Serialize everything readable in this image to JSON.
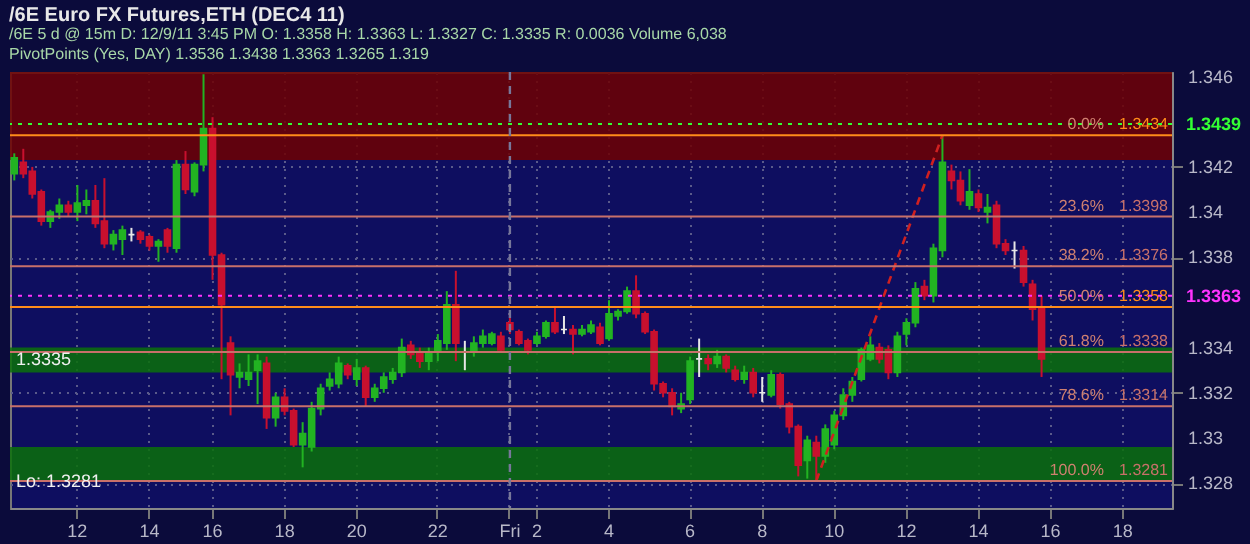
{
  "chart_data": {
    "type": "candlestick",
    "title": "/6E  Euro FX Futures,ETH (DEC4 11)",
    "subtitle": "/6E 5 d @ 15m   D: 12/9/11 3:45 PM   O: 1.3358   H: 1.3363   L: 1.3327   C: 1.3335   R: 0.0036   Volume 6,038",
    "categories": [
      null,
      null,
      null,
      null,
      null,
      null,
      null,
      "12",
      null,
      null,
      null,
      null,
      null,
      null,
      null,
      "14",
      null,
      null,
      null,
      null,
      null,
      null,
      "16",
      null,
      null,
      null,
      null,
      null,
      null,
      null,
      "18",
      null,
      null,
      null,
      null,
      null,
      null,
      null,
      "20",
      null,
      null,
      null,
      null,
      null,
      null,
      null,
      null,
      "22",
      null,
      null,
      null,
      null,
      null,
      null,
      null,
      "Fri",
      null,
      null,
      "2",
      null,
      null,
      null,
      null,
      null,
      null,
      null,
      "4",
      null,
      null,
      null,
      null,
      null,
      null,
      null,
      null,
      "6",
      null,
      null,
      null,
      null,
      null,
      null,
      null,
      "8",
      null,
      null,
      null,
      null,
      null,
      null,
      null,
      "10",
      null,
      null,
      null,
      null,
      null,
      null,
      null,
      "12",
      null,
      null,
      null,
      null,
      null,
      null,
      null,
      "14",
      null,
      null,
      null,
      null,
      null,
      null,
      null,
      "16",
      null,
      null,
      null,
      null,
      null,
      null,
      null,
      "18",
      null,
      null,
      null,
      null,
      null
    ],
    "ohlc": [
      [
        1.3417,
        1.3426,
        1.3414,
        1.3424
      ],
      [
        1.3422,
        1.3428,
        1.3415,
        1.3417
      ],
      [
        1.3418,
        1.342,
        1.3406,
        1.3408
      ],
      [
        1.3409,
        1.341,
        1.3394,
        1.3396
      ],
      [
        1.3396,
        1.3401,
        1.3393,
        1.34
      ],
      [
        1.34,
        1.3406,
        1.3397,
        1.3403
      ],
      [
        1.3403,
        1.3405,
        1.3398,
        1.34
      ],
      [
        1.34,
        1.3412,
        1.3396,
        1.3404
      ],
      [
        1.3403,
        1.341,
        1.3399,
        1.3405
      ],
      [
        1.3405,
        1.3412,
        1.3393,
        1.3395
      ],
      [
        1.3396,
        1.3415,
        1.3384,
        1.3386
      ],
      [
        1.3386,
        1.3392,
        1.3383,
        1.339
      ],
      [
        1.3388,
        1.3394,
        1.3381,
        1.3392
      ],
      [
        1.339,
        1.3393,
        1.3387,
        1.339
      ],
      [
        1.3391,
        1.3392,
        1.3386,
        1.3388
      ],
      [
        1.3389,
        1.339,
        1.3383,
        1.3385
      ],
      [
        1.3385,
        1.3388,
        1.3378,
        1.3387
      ],
      [
        1.3392,
        1.3393,
        1.3382,
        1.3385
      ],
      [
        1.3384,
        1.3423,
        1.3382,
        1.3421
      ],
      [
        1.3421,
        1.3427,
        1.3408,
        1.341
      ],
      [
        1.3409,
        1.3422,
        1.3407,
        1.3421
      ],
      [
        1.3421,
        1.3461,
        1.3418,
        1.3437
      ],
      [
        1.3437,
        1.3442,
        1.337,
        1.3381
      ],
      [
        1.3381,
        1.3382,
        1.3326,
        1.3359
      ],
      [
        1.3342,
        1.3345,
        1.331,
        1.3328
      ],
      [
        1.3327,
        1.3333,
        1.3322,
        1.3329
      ],
      [
        1.3326,
        1.3337,
        1.3323,
        1.3329
      ],
      [
        1.333,
        1.3337,
        1.3315,
        1.3334
      ],
      [
        1.3333,
        1.3336,
        1.3304,
        1.3309
      ],
      [
        1.3309,
        1.332,
        1.3305,
        1.3318
      ],
      [
        1.3318,
        1.3322,
        1.331,
        1.3312
      ],
      [
        1.3312,
        1.3313,
        1.3296,
        1.3297
      ],
      [
        1.3297,
        1.3307,
        1.3287,
        1.3302
      ],
      [
        1.3296,
        1.3316,
        1.3294,
        1.3313
      ],
      [
        1.3313,
        1.3324,
        1.331,
        1.3322
      ],
      [
        1.3323,
        1.3329,
        1.3321,
        1.3326
      ],
      [
        1.3324,
        1.3336,
        1.3322,
        1.3333
      ],
      [
        1.3332,
        1.3333,
        1.3326,
        1.3328
      ],
      [
        1.3326,
        1.3335,
        1.3323,
        1.3331
      ],
      [
        1.3331,
        1.3332,
        1.3314,
        1.3318
      ],
      [
        1.3318,
        1.3324,
        1.3316,
        1.3322
      ],
      [
        1.3322,
        1.3329,
        1.332,
        1.3327
      ],
      [
        1.3326,
        1.3331,
        1.3324,
        1.3329
      ],
      [
        1.3329,
        1.3344,
        1.3327,
        1.334
      ],
      [
        1.3341,
        1.3343,
        1.3335,
        1.3337
      ],
      [
        1.3338,
        1.334,
        1.3331,
        1.3334
      ],
      [
        1.3334,
        1.334,
        1.333,
        1.3338
      ],
      [
        1.3338,
        1.3346,
        1.3334,
        1.3343
      ],
      [
        1.3342,
        1.3365,
        1.3339,
        1.3359
      ],
      [
        1.3359,
        1.3374,
        1.3334,
        1.3342
      ],
      [
        1.3338,
        1.3343,
        1.333,
        1.3338
      ],
      [
        1.3338,
        1.3345,
        1.3336,
        1.3342
      ],
      [
        1.3342,
        1.3348,
        1.334,
        1.3345
      ],
      [
        1.3342,
        1.3347,
        1.3341,
        1.3346
      ],
      [
        1.3345,
        1.3347,
        1.3338,
        1.3339
      ],
      [
        1.3351,
        1.3355,
        1.3346,
        1.3348
      ],
      [
        1.3347,
        1.3348,
        1.3341,
        1.3342
      ],
      [
        1.3343,
        1.3344,
        1.3337,
        1.3339
      ],
      [
        1.3342,
        1.3347,
        1.3341,
        1.3345
      ],
      [
        1.3345,
        1.3352,
        1.3344,
        1.3351
      ],
      [
        1.3351,
        1.3358,
        1.3346,
        1.3347
      ],
      [
        1.3348,
        1.3354,
        1.3346,
        1.3348
      ],
      [
        1.3348,
        1.335,
        1.3337,
        1.3346
      ],
      [
        1.3346,
        1.335,
        1.3345,
        1.3348
      ],
      [
        1.3347,
        1.3352,
        1.3346,
        1.335
      ],
      [
        1.3349,
        1.3351,
        1.3341,
        1.3342
      ],
      [
        1.3344,
        1.3361,
        1.3343,
        1.3355
      ],
      [
        1.3354,
        1.3357,
        1.3352,
        1.3356
      ],
      [
        1.3356,
        1.3367,
        1.3355,
        1.3365
      ],
      [
        1.3365,
        1.3372,
        1.3353,
        1.3355
      ],
      [
        1.3355,
        1.3356,
        1.3346,
        1.3347
      ],
      [
        1.3347,
        1.3348,
        1.3321,
        1.3324
      ],
      [
        1.3324,
        1.3325,
        1.3318,
        1.332
      ],
      [
        1.332,
        1.3322,
        1.331,
        1.3314
      ],
      [
        1.3313,
        1.332,
        1.3311,
        1.3315
      ],
      [
        1.3317,
        1.3336,
        1.3315,
        1.3334
      ],
      [
        1.3335,
        1.3344,
        1.3327,
        1.3335
      ],
      [
        1.3335,
        1.3337,
        1.333,
        1.3333
      ],
      [
        1.3333,
        1.3339,
        1.3331,
        1.3336
      ],
      [
        1.3336,
        1.3337,
        1.3329,
        1.3331
      ],
      [
        1.333,
        1.3332,
        1.3325,
        1.3326
      ],
      [
        1.3326,
        1.3332,
        1.3324,
        1.3329
      ],
      [
        1.3329,
        1.3331,
        1.3318,
        1.332
      ],
      [
        1.332,
        1.3327,
        1.3316,
        1.332
      ],
      [
        1.3319,
        1.333,
        1.3318,
        1.3328
      ],
      [
        1.3328,
        1.3329,
        1.3313,
        1.3315
      ],
      [
        1.3315,
        1.3316,
        1.3302,
        1.3305
      ],
      [
        1.3305,
        1.3306,
        1.3283,
        1.3288
      ],
      [
        1.329,
        1.3301,
        1.3282,
        1.3299
      ],
      [
        1.3298,
        1.3301,
        1.3281,
        1.3292
      ],
      [
        1.3292,
        1.3306,
        1.3289,
        1.3304
      ],
      [
        1.3297,
        1.3312,
        1.3295,
        1.331
      ],
      [
        1.331,
        1.3322,
        1.3308,
        1.3319
      ],
      [
        1.3319,
        1.3327,
        1.3316,
        1.3325
      ],
      [
        1.3326,
        1.334,
        1.3325,
        1.3339
      ],
      [
        1.3335,
        1.3345,
        1.3334,
        1.3341
      ],
      [
        1.334,
        1.3342,
        1.3333,
        1.3335
      ],
      [
        1.3339,
        1.3341,
        1.3326,
        1.3329
      ],
      [
        1.3329,
        1.3347,
        1.3327,
        1.3345
      ],
      [
        1.3346,
        1.3353,
        1.3341,
        1.3351
      ],
      [
        1.3351,
        1.3369,
        1.3349,
        1.3366
      ],
      [
        1.3367,
        1.337,
        1.3361,
        1.3363
      ],
      [
        1.3363,
        1.3386,
        1.336,
        1.3384
      ],
      [
        1.3383,
        1.3434,
        1.338,
        1.3422
      ],
      [
        1.3418,
        1.3421,
        1.341,
        1.3414
      ],
      [
        1.3414,
        1.3418,
        1.3403,
        1.3405
      ],
      [
        1.3403,
        1.3419,
        1.3401,
        1.3409
      ],
      [
        1.3408,
        1.341,
        1.34,
        1.3402
      ],
      [
        1.34,
        1.3408,
        1.3395,
        1.3402
      ],
      [
        1.3403,
        1.3405,
        1.3384,
        1.3386
      ],
      [
        1.3386,
        1.3388,
        1.3381,
        1.3383
      ],
      [
        1.3383,
        1.3387,
        1.3375,
        1.3383
      ],
      [
        1.3383,
        1.3385,
        1.3367,
        1.3369
      ],
      [
        1.3368,
        1.337,
        1.3352,
        1.3357
      ],
      [
        1.3358,
        1.3363,
        1.3327,
        1.3335
      ],
      null,
      null,
      null,
      null,
      null,
      null,
      null,
      null,
      null,
      null,
      null,
      null,
      null,
      null
    ],
    "colors": [
      "#22b322",
      "#c8102e",
      "#c8102e",
      "#c8102e",
      "#22b322",
      "#22b322",
      "#c8102e",
      "#22b322",
      "#22b322",
      "#c8102e",
      "#c8102e",
      "#22b322",
      "#22b322",
      "#e6e6e6",
      "#c8102e",
      "#c8102e",
      "#22b322",
      "#c8102e",
      "#22b322",
      "#c8102e",
      "#22b322",
      "#22b322",
      "#c8102e",
      "#c8102e",
      "#c8102e",
      "#22b322",
      "#22b322",
      "#22b322",
      "#c8102e",
      "#22b322",
      "#c8102e",
      "#c8102e",
      "#22b322",
      "#22b322",
      "#22b322",
      "#22b322",
      "#22b322",
      "#c8102e",
      "#22b322",
      "#c8102e",
      "#22b322",
      "#22b322",
      "#22b322",
      "#22b322",
      "#c8102e",
      "#c8102e",
      "#22b322",
      "#22b322",
      "#22b322",
      "#c8102e",
      "#e6e6e6",
      "#22b322",
      "#22b322",
      "#22b322",
      "#c8102e",
      "#c8102e",
      "#c8102e",
      "#c8102e",
      "#22b322",
      "#22b322",
      "#c8102e",
      "#e6e6e6",
      "#c8102e",
      "#22b322",
      "#22b322",
      "#c8102e",
      "#22b322",
      "#22b322",
      "#22b322",
      "#c8102e",
      "#c8102e",
      "#c8102e",
      "#c8102e",
      "#c8102e",
      "#22b322",
      "#22b322",
      "#e6e6e6",
      "#c8102e",
      "#22b322",
      "#c8102e",
      "#c8102e",
      "#22b322",
      "#c8102e",
      "#e6e6e6",
      "#22b322",
      "#c8102e",
      "#c8102e",
      "#c8102e",
      "#22b322",
      "#c8102e",
      "#22b322",
      "#22b322",
      "#22b322",
      "#22b322",
      "#22b322",
      "#22b322",
      "#c8102e",
      "#c8102e",
      "#22b322",
      "#22b322",
      "#22b322",
      "#c8102e",
      "#22b322",
      "#22b322",
      "#c8102e",
      "#c8102e",
      "#22b322",
      "#c8102e",
      "#22b322",
      "#c8102e",
      "#c8102e",
      "#e6e6e6",
      "#c8102e",
      "#c8102e",
      "#c8102e",
      null,
      null,
      null,
      null,
      null,
      null,
      null,
      null,
      null,
      null,
      null,
      null,
      null,
      null
    ],
    "series": [
      {
        "type": "line",
        "color": "#d02020",
        "line_style": "dashed",
        "values": [
          null,
          null,
          null,
          null,
          null,
          null,
          null,
          null,
          null,
          null,
          null,
          null,
          null,
          null,
          null,
          null,
          null,
          null,
          null,
          null,
          null,
          null,
          null,
          null,
          null,
          null,
          null,
          null,
          null,
          null,
          null,
          null,
          null,
          null,
          null,
          null,
          null,
          null,
          null,
          null,
          null,
          null,
          null,
          null,
          null,
          null,
          null,
          null,
          null,
          null,
          null,
          null,
          null,
          null,
          null,
          null,
          null,
          null,
          null,
          null,
          null,
          null,
          null,
          null,
          null,
          null,
          null,
          null,
          null,
          null,
          null,
          null,
          null,
          null,
          null,
          null,
          null,
          null,
          null,
          null,
          null,
          null,
          null,
          null,
          null,
          null,
          null,
          null,
          null,
          1.3281,
          null,
          null,
          null,
          null,
          null,
          null,
          null,
          null,
          null,
          null,
          null,
          null,
          null,
          1.3434,
          null,
          null,
          null,
          null,
          null,
          null,
          null,
          null,
          null,
          null,
          null,
          null,
          null,
          null,
          null,
          null,
          null,
          null,
          null,
          null,
          null,
          null,
          null,
          null,
          null
        ]
      }
    ],
    "ylim": [
      1.3269,
      1.3462
    ],
    "yticks": [
      1.328,
      1.33,
      1.332,
      1.334,
      1.338,
      1.34,
      1.342,
      1.346
    ],
    "grid": true,
    "ref_lines": [
      {
        "axis": "y",
        "value": 1.3434,
        "label": "1.3434",
        "color": "#ff8c1a"
      },
      {
        "axis": "y",
        "value": 1.3398,
        "label": "1.3398",
        "color": "#c8706a"
      },
      {
        "axis": "y",
        "value": 1.3376,
        "label": "1.3376",
        "color": "#c8706a"
      },
      {
        "axis": "y",
        "value": 1.3358,
        "label": "1.3358",
        "color": "#ff8c1a"
      },
      {
        "axis": "y",
        "value": 1.3338,
        "label": "1.3338",
        "color": "#c8706a"
      },
      {
        "axis": "y",
        "value": 1.3314,
        "label": "1.3314",
        "color": "#c8706a"
      },
      {
        "axis": "y",
        "value": 1.3281,
        "label": "1.3281",
        "color": "#c8706a"
      },
      {
        "axis": "y",
        "value": 1.3439,
        "label": "1.3439",
        "color": "#33ff33",
        "line_style": "dotted"
      },
      {
        "axis": "y",
        "value": 1.3363,
        "label": "1.3363",
        "color": "#ff33ff",
        "line_style": "dotted"
      },
      {
        "axis": "x",
        "value": "Fri",
        "label": null,
        "color": "#77779a",
        "line_style": "dashed"
      }
    ],
    "bands": [
      {
        "axis": "y",
        "from": 1.3423,
        "to": 1.3462,
        "color": "#6e0000"
      },
      {
        "axis": "y",
        "from": 1.3329,
        "to": 1.334,
        "color": "#0a700a"
      },
      {
        "axis": "y",
        "from": 1.3281,
        "to": 1.3296,
        "color": "#0a700a"
      }
    ],
    "annotations": [
      "PivotPoints (Yes, DAY)   1.3536   1.3438   1.3363   1.3265   1.319",
      {
        "text": "0.0%",
        "y": 1.3434
      },
      {
        "text": "23.6%",
        "y": 1.3398
      },
      {
        "text": "38.2%",
        "y": 1.3376
      },
      {
        "text": "50.0%",
        "y": 1.3358
      },
      {
        "text": "61.8%",
        "y": 1.3338
      },
      {
        "text": "78.6%",
        "y": 1.3314
      },
      {
        "text": "100.0%",
        "y": 1.3281
      },
      {
        "text": "Lo: 1.3281",
        "y": 1.3281
      },
      {
        "text": "1.3335",
        "y": 1.3335
      }
    ]
  }
}
